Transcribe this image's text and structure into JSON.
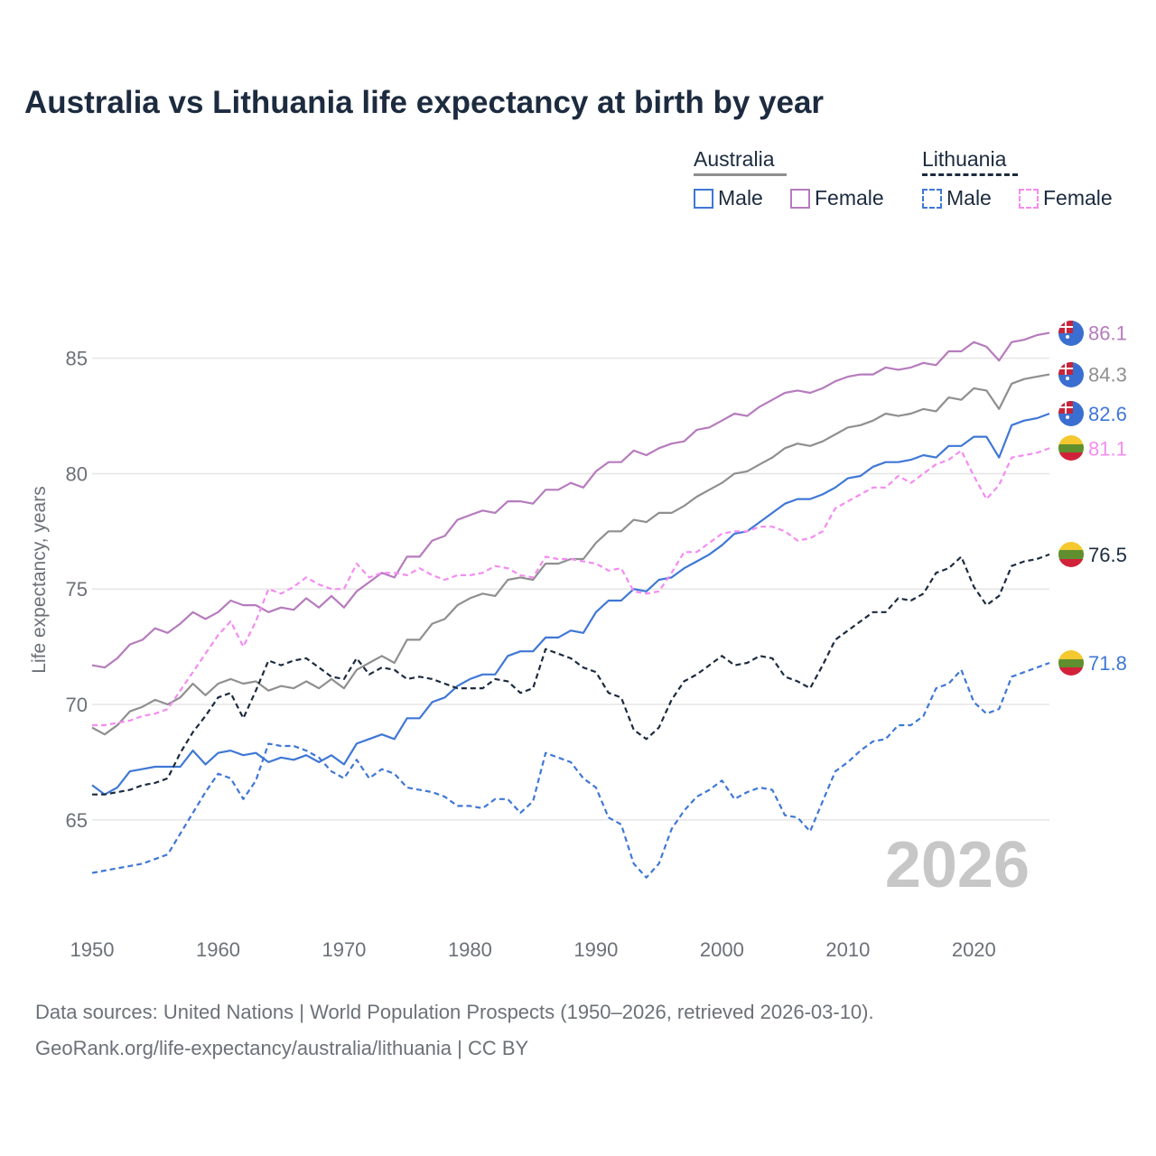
{
  "title": "Australia vs Lithuania life expectancy at birth by year",
  "legend": {
    "australia": {
      "label": "Australia",
      "male": "Male",
      "female": "Female"
    },
    "lithuania": {
      "label": "Lithuania",
      "male": "Male",
      "female": "Female"
    }
  },
  "year_watermark": "2026",
  "footer": {
    "line1": "Data sources: United Nations | World Population Prospects (1950–2026, retrieved 2026-03-10).",
    "line2": "GeoRank.org/life-expectancy/australia/lithuania | CC BY"
  },
  "colors": {
    "au_total": "#8f8f8f",
    "au_male": "#3f77d6",
    "au_female": "#b67bbd",
    "lt_total": "#1c2b3f",
    "lt_male": "#3f77d6",
    "lt_female": "#f48cf0",
    "grid": "#e6e6e6",
    "axis_text": "#6c7078",
    "watermark": "#c7c7c7"
  },
  "chart_data": {
    "type": "line",
    "title": "Australia vs Lithuania life expectancy at birth by year",
    "xlabel": "",
    "ylabel": "Life expectancy, years",
    "xlim": [
      1950,
      2026
    ],
    "ylim": [
      61,
      88
    ],
    "x_ticks": [
      1950,
      1960,
      1970,
      1980,
      1990,
      2000,
      2010,
      2020
    ],
    "y_ticks": [
      65,
      70,
      75,
      80,
      85
    ],
    "grid": "horizontal",
    "legend_position": "top-right",
    "x": [
      1950,
      1951,
      1952,
      1953,
      1954,
      1955,
      1956,
      1957,
      1958,
      1959,
      1960,
      1961,
      1962,
      1963,
      1964,
      1965,
      1966,
      1967,
      1968,
      1969,
      1970,
      1971,
      1972,
      1973,
      1974,
      1975,
      1976,
      1977,
      1978,
      1979,
      1980,
      1981,
      1982,
      1983,
      1984,
      1985,
      1986,
      1987,
      1988,
      1989,
      1990,
      1991,
      1992,
      1993,
      1994,
      1995,
      1996,
      1997,
      1998,
      1999,
      2000,
      2001,
      2002,
      2003,
      2004,
      2005,
      2006,
      2007,
      2008,
      2009,
      2010,
      2011,
      2012,
      2013,
      2014,
      2015,
      2016,
      2017,
      2018,
      2019,
      2020,
      2021,
      2022,
      2023,
      2024,
      2025,
      2026
    ],
    "series": [
      {
        "name": "Australia Female",
        "country": "Australia",
        "sex": "Female",
        "style": "solid",
        "color_key": "au_female",
        "end_label": "86.1",
        "values": [
          71.7,
          71.6,
          72.0,
          72.6,
          72.8,
          73.3,
          73.1,
          73.5,
          74.0,
          73.7,
          74.0,
          74.5,
          74.3,
          74.3,
          74.0,
          74.2,
          74.1,
          74.6,
          74.2,
          74.7,
          74.2,
          74.9,
          75.3,
          75.7,
          75.5,
          76.4,
          76.4,
          77.1,
          77.3,
          78.0,
          78.2,
          78.4,
          78.3,
          78.8,
          78.8,
          78.7,
          79.3,
          79.3,
          79.6,
          79.4,
          80.1,
          80.5,
          80.5,
          81.0,
          80.8,
          81.1,
          81.3,
          81.4,
          81.9,
          82.0,
          82.3,
          82.6,
          82.5,
          82.9,
          83.2,
          83.5,
          83.6,
          83.5,
          83.7,
          84.0,
          84.2,
          84.3,
          84.3,
          84.6,
          84.5,
          84.6,
          84.8,
          84.7,
          85.3,
          85.3,
          85.7,
          85.5,
          84.9,
          85.7,
          85.8,
          86.0,
          86.1
        ]
      },
      {
        "name": "Australia Total",
        "country": "Australia",
        "sex": "Total",
        "style": "solid",
        "color_key": "au_total",
        "end_label": "84.3",
        "values": [
          69.0,
          68.7,
          69.1,
          69.7,
          69.9,
          70.2,
          70.0,
          70.3,
          70.9,
          70.4,
          70.9,
          71.1,
          70.9,
          71.0,
          70.6,
          70.8,
          70.7,
          71.0,
          70.7,
          71.1,
          70.7,
          71.5,
          71.8,
          72.1,
          71.8,
          72.8,
          72.8,
          73.5,
          73.7,
          74.3,
          74.6,
          74.8,
          74.7,
          75.4,
          75.5,
          75.4,
          76.1,
          76.1,
          76.3,
          76.3,
          77.0,
          77.5,
          77.5,
          78.0,
          77.9,
          78.3,
          78.3,
          78.6,
          79.0,
          79.3,
          79.6,
          80.0,
          80.1,
          80.4,
          80.7,
          81.1,
          81.3,
          81.2,
          81.4,
          81.7,
          82.0,
          82.1,
          82.3,
          82.6,
          82.5,
          82.6,
          82.8,
          82.7,
          83.3,
          83.2,
          83.7,
          83.6,
          82.8,
          83.9,
          84.1,
          84.2,
          84.3
        ]
      },
      {
        "name": "Australia Male",
        "country": "Australia",
        "sex": "Male",
        "style": "solid",
        "color_key": "au_male",
        "end_label": "82.6",
        "values": [
          66.5,
          66.1,
          66.4,
          67.1,
          67.2,
          67.3,
          67.3,
          67.3,
          68.0,
          67.4,
          67.9,
          68.0,
          67.8,
          67.9,
          67.5,
          67.7,
          67.6,
          67.8,
          67.5,
          67.8,
          67.4,
          68.3,
          68.5,
          68.7,
          68.5,
          69.4,
          69.4,
          70.1,
          70.3,
          70.8,
          71.1,
          71.3,
          71.3,
          72.1,
          72.3,
          72.3,
          72.9,
          72.9,
          73.2,
          73.1,
          74.0,
          74.5,
          74.5,
          75.0,
          74.9,
          75.4,
          75.5,
          75.9,
          76.2,
          76.5,
          76.9,
          77.4,
          77.5,
          77.9,
          78.3,
          78.7,
          78.9,
          78.9,
          79.1,
          79.4,
          79.8,
          79.9,
          80.3,
          80.5,
          80.5,
          80.6,
          80.8,
          80.7,
          81.2,
          81.2,
          81.6,
          81.6,
          80.7,
          82.1,
          82.3,
          82.4,
          82.6
        ]
      },
      {
        "name": "Lithuania Female",
        "country": "Lithuania",
        "sex": "Female",
        "style": "dashed",
        "color_key": "lt_female",
        "end_label": "81.1",
        "values": [
          69.1,
          69.1,
          69.2,
          69.3,
          69.5,
          69.6,
          69.8,
          70.6,
          71.4,
          72.2,
          73.0,
          73.6,
          72.5,
          73.6,
          75.0,
          74.8,
          75.1,
          75.5,
          75.2,
          75.0,
          75.0,
          76.1,
          75.5,
          75.7,
          75.7,
          75.6,
          75.9,
          75.6,
          75.4,
          75.6,
          75.6,
          75.7,
          76.0,
          75.9,
          75.6,
          75.5,
          76.4,
          76.3,
          76.3,
          76.2,
          76.1,
          75.8,
          75.9,
          74.9,
          74.8,
          74.9,
          75.7,
          76.6,
          76.6,
          77.0,
          77.4,
          77.5,
          77.5,
          77.7,
          77.7,
          77.5,
          77.1,
          77.2,
          77.5,
          78.5,
          78.8,
          79.1,
          79.4,
          79.4,
          79.9,
          79.6,
          80.0,
          80.4,
          80.6,
          81.0,
          79.9,
          78.9,
          79.5,
          80.7,
          80.8,
          80.9,
          81.1
        ]
      },
      {
        "name": "Lithuania Total",
        "country": "Lithuania",
        "sex": "Total",
        "style": "dashed",
        "color_key": "lt_total",
        "end_label": "76.5",
        "values": [
          66.1,
          66.1,
          66.2,
          66.3,
          66.5,
          66.6,
          66.8,
          67.9,
          68.8,
          69.5,
          70.3,
          70.5,
          69.4,
          70.6,
          71.9,
          71.7,
          71.9,
          72.0,
          71.6,
          71.2,
          71.1,
          72.0,
          71.3,
          71.6,
          71.5,
          71.1,
          71.2,
          71.1,
          70.9,
          70.7,
          70.7,
          70.7,
          71.1,
          71.0,
          70.5,
          70.7,
          72.4,
          72.2,
          72.0,
          71.6,
          71.4,
          70.5,
          70.3,
          68.9,
          68.5,
          69.0,
          70.2,
          71.0,
          71.3,
          71.7,
          72.1,
          71.7,
          71.8,
          72.1,
          72.0,
          71.2,
          71.0,
          70.7,
          71.7,
          72.8,
          73.2,
          73.6,
          74.0,
          74.0,
          74.6,
          74.5,
          74.8,
          75.7,
          75.9,
          76.4,
          75.1,
          74.3,
          74.7,
          76.0,
          76.2,
          76.3,
          76.5
        ]
      },
      {
        "name": "Lithuania Male",
        "country": "Lithuania",
        "sex": "Male",
        "style": "dashed",
        "color_key": "lt_male",
        "end_label": "71.8",
        "values": [
          62.7,
          62.8,
          62.9,
          63.0,
          63.1,
          63.3,
          63.5,
          64.4,
          65.3,
          66.2,
          67.0,
          66.8,
          65.9,
          66.7,
          68.3,
          68.2,
          68.2,
          68.0,
          67.7,
          67.1,
          66.8,
          67.6,
          66.8,
          67.2,
          67.0,
          66.4,
          66.3,
          66.2,
          66.0,
          65.6,
          65.6,
          65.5,
          65.9,
          65.9,
          65.3,
          65.8,
          67.9,
          67.7,
          67.5,
          66.8,
          66.4,
          65.1,
          64.8,
          63.1,
          62.5,
          63.1,
          64.6,
          65.4,
          66.0,
          66.3,
          66.7,
          65.9,
          66.2,
          66.4,
          66.3,
          65.2,
          65.1,
          64.5,
          65.8,
          67.1,
          67.5,
          68.0,
          68.4,
          68.5,
          69.1,
          69.1,
          69.5,
          70.7,
          70.9,
          71.5,
          70.1,
          69.6,
          69.8,
          71.2,
          71.4,
          71.6,
          71.8
        ]
      }
    ],
    "end_labels": [
      {
        "series": "Australia Female",
        "text": "86.1",
        "flag": "australia"
      },
      {
        "series": "Australia Total",
        "text": "84.3",
        "flag": "australia"
      },
      {
        "series": "Australia Male",
        "text": "82.6",
        "flag": "australia"
      },
      {
        "series": "Lithuania Female",
        "text": "81.1",
        "flag": "lithuania"
      },
      {
        "series": "Lithuania Total",
        "text": "76.5",
        "flag": "lithuania"
      },
      {
        "series": "Lithuania Male",
        "text": "71.8",
        "flag": "lithuania"
      }
    ]
  }
}
